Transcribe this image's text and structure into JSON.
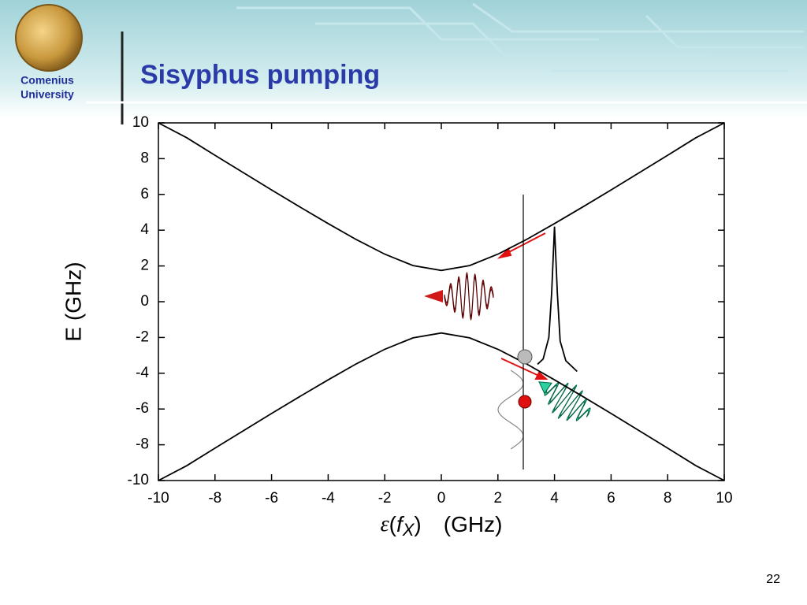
{
  "slide": {
    "logo_text": [
      "Comenius",
      "University"
    ],
    "title": "Sisyphus pumping",
    "page_number": "22"
  },
  "chart_data": {
    "type": "line",
    "ylabel": "E (GHz)",
    "xlabel": [
      "ε",
      "(",
      "f",
      "X",
      ")",
      "(GHz)"
    ],
    "xlim": [
      -10,
      10
    ],
    "ylim": [
      -10,
      10
    ],
    "xticks": [
      -10,
      -8,
      -6,
      -4,
      -2,
      0,
      2,
      4,
      6,
      8,
      10
    ],
    "yticks": [
      -10,
      -8,
      -6,
      -4,
      -2,
      0,
      2,
      4,
      6,
      8,
      10
    ],
    "series": [
      {
        "color": "#000000",
        "x": [
          -10,
          -9,
          -8,
          -7,
          -6,
          -5,
          -4,
          -3,
          -2,
          -1,
          0,
          1,
          2,
          3,
          4,
          5,
          6,
          7,
          8,
          9,
          10
        ],
        "values": [
          10,
          9.17,
          8.19,
          7.22,
          6.25,
          5.3,
          4.37,
          3.47,
          2.66,
          2.02,
          1.75,
          2.02,
          2.66,
          3.47,
          4.37,
          5.3,
          6.25,
          7.22,
          8.19,
          9.17,
          10
        ]
      },
      {
        "color": "#000000",
        "x": [
          -10,
          -9,
          -8,
          -7,
          -6,
          -5,
          -4,
          -3,
          -2,
          -1,
          0,
          1,
          2,
          3,
          4,
          5,
          6,
          7,
          8,
          9,
          10
        ],
        "values": [
          -10,
          -9.17,
          -8.19,
          -7.22,
          -6.25,
          -5.3,
          -4.37,
          -3.47,
          -2.66,
          -2.02,
          -1.75,
          -2.02,
          -2.66,
          -3.47,
          -4.37,
          -5.3,
          -6.25,
          -7.22,
          -8.19,
          -9.17,
          -10
        ]
      },
      {
        "color": "#000000",
        "x": [
          3.4,
          3.6,
          3.8,
          3.9,
          4.0,
          4.1,
          4.2,
          4.4,
          4.8
        ],
        "values": [
          -3.5,
          -3.2,
          -2.0,
          0.5,
          4.2,
          0.5,
          -2.2,
          -3.3,
          -3.9
        ]
      }
    ]
  }
}
